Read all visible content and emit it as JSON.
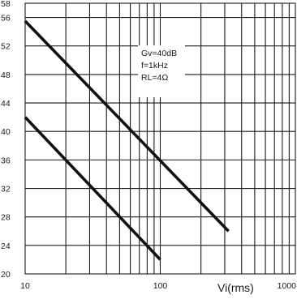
{
  "chart_data": {
    "type": "line",
    "x_scale": "log",
    "y_scale": "linear",
    "xlim": [
      10,
      1000
    ],
    "ylim": [
      20,
      58
    ],
    "x_ticks": [
      "10",
      "100",
      "1000"
    ],
    "y_ticks": [
      "20",
      "24",
      "28",
      "32",
      "36",
      "40",
      "44",
      "48",
      "52",
      "56",
      "58"
    ],
    "y_tick_values": [
      20,
      24,
      28,
      32,
      36,
      40,
      44,
      48,
      52,
      56,
      58
    ],
    "grid": true,
    "xlabel": "Vi(rms)",
    "ylabel": "",
    "title": "",
    "annotations": [
      "Gv=40dB",
      "f=1kHz",
      "RL=4Ω"
    ],
    "series": [
      {
        "x": [
          10,
          320
        ],
        "y": [
          55.5,
          26
        ]
      },
      {
        "x": [
          10,
          100
        ],
        "y": [
          42,
          22
        ]
      }
    ],
    "colors": {
      "line": "#111111",
      "grid": "#1a1a1a",
      "background": "#ffffff"
    }
  }
}
